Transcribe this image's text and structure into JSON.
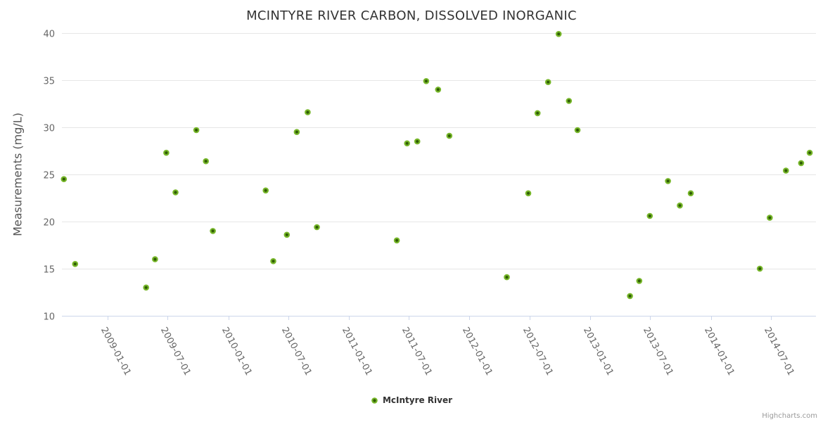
{
  "chart_data": {
    "type": "scatter",
    "title": "MCINTYRE RIVER CARBON, DISSOLVED INORGANIC",
    "xlabel": "",
    "ylabel": "Measurements (mg/L)",
    "ylim": [
      10,
      40
    ],
    "y_ticks": [
      10,
      15,
      20,
      25,
      30,
      35,
      40
    ],
    "x_tick_labels": [
      "2009-01-01",
      "2009-07-01",
      "2010-01-01",
      "2010-07-01",
      "2011-01-01",
      "2011-07-01",
      "2012-01-01",
      "2012-07-01",
      "2013-01-01",
      "2013-07-01",
      "2014-01-01",
      "2014-07-01"
    ],
    "x_range": [
      "2008-08-15",
      "2014-11-15"
    ],
    "grid": "horizontal-only",
    "legend_position": "bottom-center",
    "series": [
      {
        "name": "McIntyre River",
        "marker_fill": "#2F5C05",
        "marker_line": "#76B629",
        "points": [
          {
            "date": "2008-08-21",
            "value": 24.5
          },
          {
            "date": "2008-09-24",
            "value": 15.5
          },
          {
            "date": "2009-04-27",
            "value": 13.0
          },
          {
            "date": "2009-05-24",
            "value": 16.0
          },
          {
            "date": "2009-06-27",
            "value": 27.3
          },
          {
            "date": "2009-07-25",
            "value": 23.1
          },
          {
            "date": "2009-09-26",
            "value": 29.7
          },
          {
            "date": "2009-10-25",
            "value": 26.4
          },
          {
            "date": "2009-11-15",
            "value": 19.0
          },
          {
            "date": "2010-04-24",
            "value": 23.3
          },
          {
            "date": "2010-05-17",
            "value": 15.8
          },
          {
            "date": "2010-06-27",
            "value": 18.6
          },
          {
            "date": "2010-07-27",
            "value": 29.5
          },
          {
            "date": "2010-08-29",
            "value": 31.6
          },
          {
            "date": "2010-09-26",
            "value": 19.4
          },
          {
            "date": "2011-05-26",
            "value": 18.0
          },
          {
            "date": "2011-06-26",
            "value": 28.3
          },
          {
            "date": "2011-07-27",
            "value": 28.5
          },
          {
            "date": "2011-08-23",
            "value": 34.9
          },
          {
            "date": "2011-09-28",
            "value": 34.0
          },
          {
            "date": "2011-11-01",
            "value": 29.1
          },
          {
            "date": "2012-04-23",
            "value": 14.1
          },
          {
            "date": "2012-06-27",
            "value": 23.0
          },
          {
            "date": "2012-07-25",
            "value": 31.5
          },
          {
            "date": "2012-08-26",
            "value": 34.8
          },
          {
            "date": "2012-09-27",
            "value": 39.9
          },
          {
            "date": "2012-10-28",
            "value": 32.8
          },
          {
            "date": "2012-11-23",
            "value": 29.7
          },
          {
            "date": "2013-05-01",
            "value": 12.1
          },
          {
            "date": "2013-05-29",
            "value": 13.7
          },
          {
            "date": "2013-06-30",
            "value": 20.6
          },
          {
            "date": "2013-08-24",
            "value": 24.3
          },
          {
            "date": "2013-09-29",
            "value": 21.7
          },
          {
            "date": "2013-11-01",
            "value": 23.0
          },
          {
            "date": "2014-05-29",
            "value": 15.0
          },
          {
            "date": "2014-06-28",
            "value": 20.4
          },
          {
            "date": "2014-08-16",
            "value": 25.4
          },
          {
            "date": "2014-10-01",
            "value": 26.2
          },
          {
            "date": "2014-10-27",
            "value": 27.3
          }
        ]
      }
    ]
  },
  "colors": {
    "grid_line": "#E6E6E6",
    "axis_line": "#CCD6EB",
    "tick_label": "#666666",
    "title_text": "#333333",
    "y_title_text": "#555555",
    "credits_text": "#999999"
  },
  "credits": {
    "text": "Highcharts.com"
  }
}
